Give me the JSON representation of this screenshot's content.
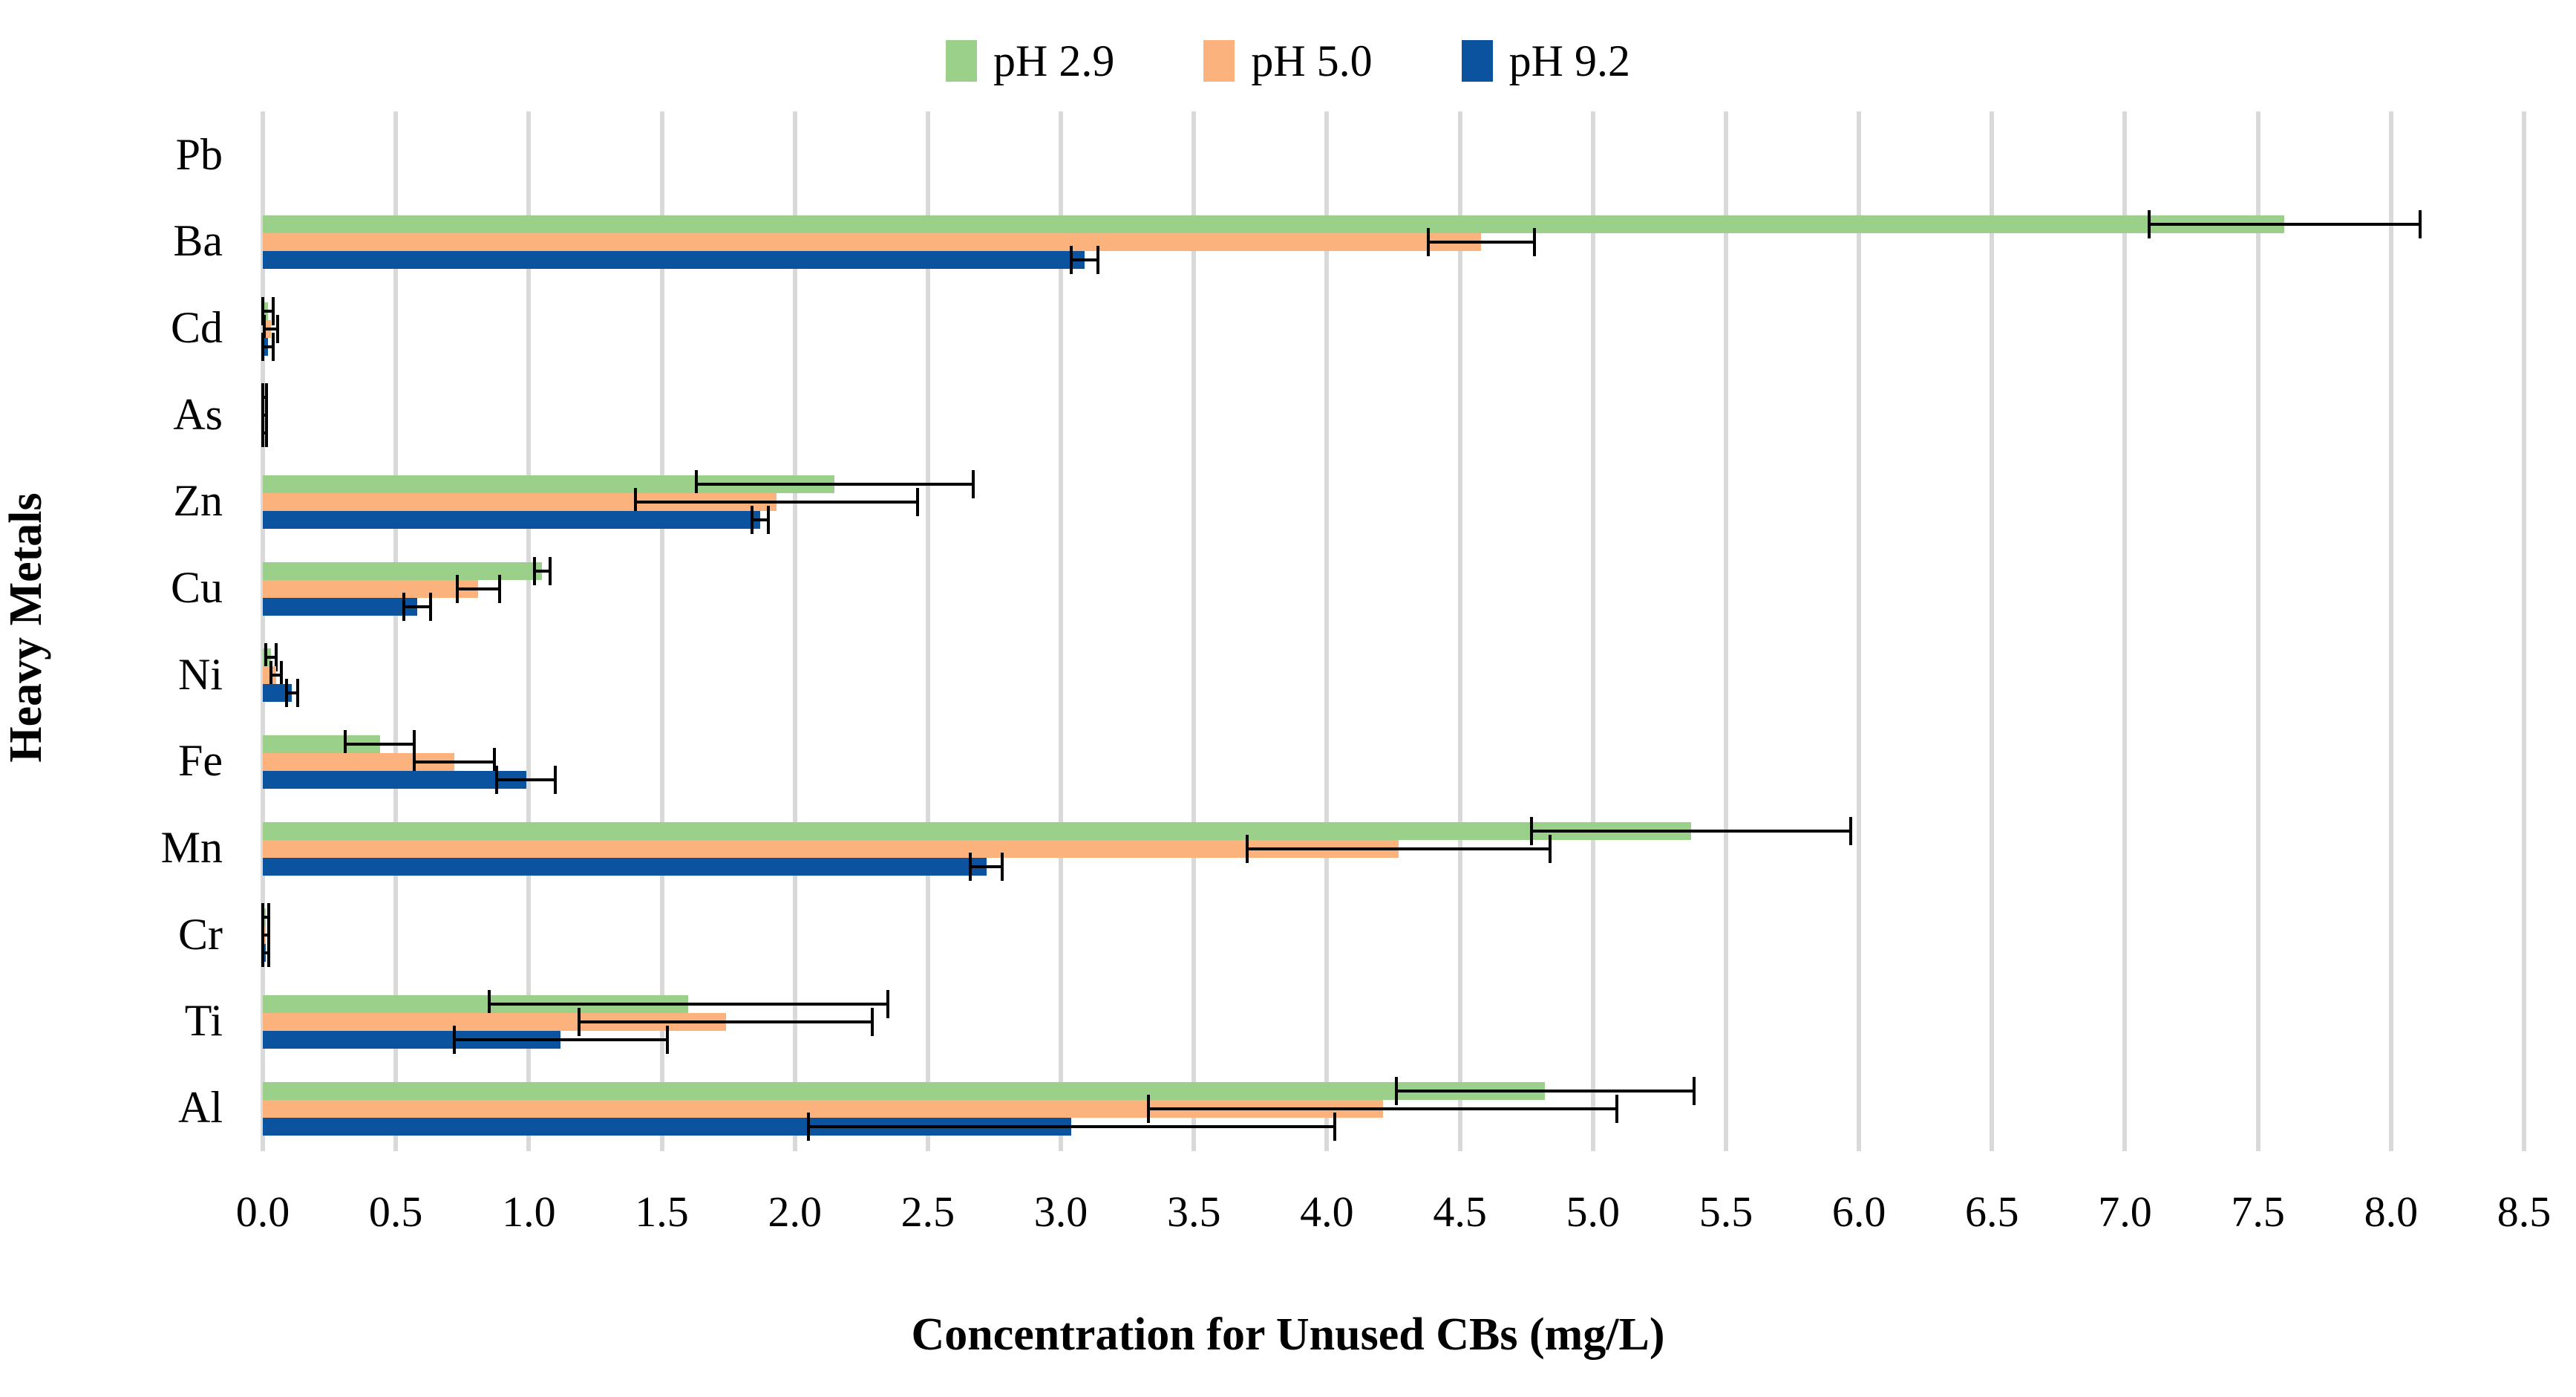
{
  "chart_data": {
    "type": "bar",
    "orientation": "horizontal",
    "title": "",
    "xlabel": "Concentration for Unused CBs (mg/L)",
    "ylabel": "Heavy Metals",
    "categories": [
      "Pb",
      "Ba",
      "Cd",
      "As",
      "Zn",
      "Cu",
      "Ni",
      "Fe",
      "Mn",
      "Cr",
      "Ti",
      "Al"
    ],
    "series": [
      {
        "name": "pH 2.9",
        "color": "#9BD08A",
        "values": [
          0,
          7.6,
          0.02,
          0.005,
          2.15,
          1.05,
          0.03,
          0.44,
          5.37,
          0.01,
          1.6,
          4.82
        ],
        "errors": [
          0,
          0.51,
          0.02,
          0.008,
          0.52,
          0.03,
          0.02,
          0.13,
          0.6,
          0.012,
          0.75,
          0.56
        ]
      },
      {
        "name": "pH 5.0",
        "color": "#FBB27D",
        "values": [
          0,
          4.58,
          0.03,
          0.005,
          1.93,
          0.81,
          0.05,
          0.72,
          4.27,
          0.01,
          1.74,
          4.21
        ],
        "errors": [
          0,
          0.2,
          0.025,
          0.008,
          0.53,
          0.08,
          0.02,
          0.15,
          0.57,
          0.012,
          0.55,
          0.88
        ]
      },
      {
        "name": "pH 9.2",
        "color": "#0B529F",
        "values": [
          0,
          3.09,
          0.02,
          0.005,
          1.87,
          0.58,
          0.11,
          0.99,
          2.72,
          0.01,
          1.12,
          3.04
        ],
        "errors": [
          0,
          0.05,
          0.02,
          0.008,
          0.03,
          0.05,
          0.02,
          0.11,
          0.06,
          0.012,
          0.4,
          0.99
        ]
      }
    ],
    "x_ticks": [
      "0.0",
      "0.5",
      "1.0",
      "1.5",
      "2.0",
      "2.5",
      "3.0",
      "3.5",
      "4.0",
      "4.5",
      "5.0",
      "5.5",
      "6.0",
      "6.5",
      "7.0",
      "7.5",
      "8.0",
      "8.5"
    ],
    "xlim": [
      0,
      8.5
    ],
    "grid": "vertical-only",
    "gridline_color": "#D9D9D9",
    "error_bar_color": "#000000",
    "legend_position": "top-center"
  }
}
